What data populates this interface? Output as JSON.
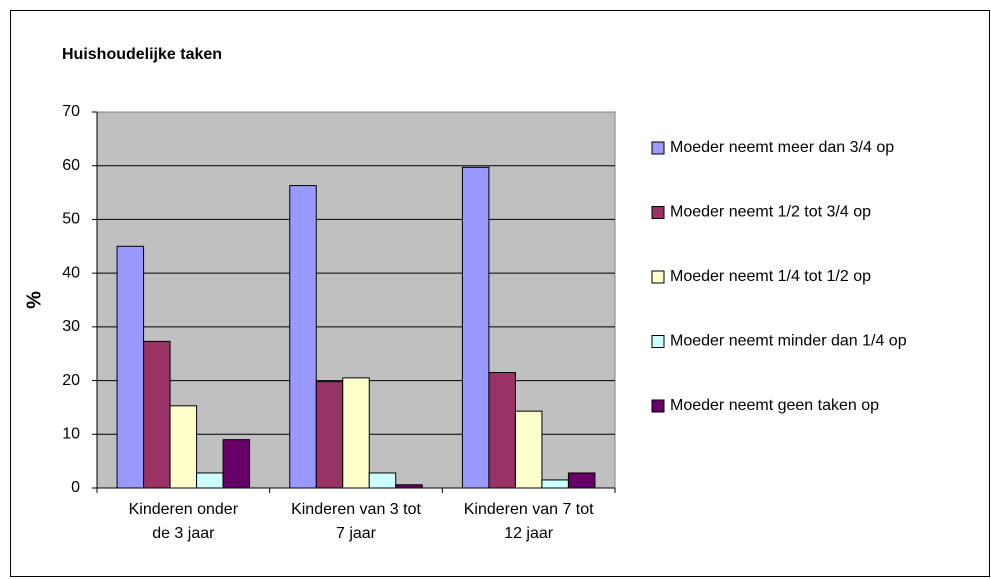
{
  "chart_data": {
    "type": "bar",
    "title": "Huishoudelijke taken",
    "y_label": "%",
    "categories": [
      "Kinderen onder de 3 jaar",
      "Kinderen van 3 tot 7 jaar",
      "Kinderen van 7 tot 12 jaar"
    ],
    "series": [
      {
        "name": "Moeder neemt meer dan 3/4 op",
        "color": "#9999ff",
        "values": [
          45,
          56.3,
          59.7
        ]
      },
      {
        "name": "Moeder neemt 1/2 tot 3/4 op",
        "color": "#993366",
        "values": [
          27.3,
          19.8,
          21.5
        ]
      },
      {
        "name": "Moeder neemt 1/4 tot 1/2 op",
        "color": "#ffffcc",
        "values": [
          15.3,
          20.5,
          14.3
        ]
      },
      {
        "name": "Moeder neemt minder dan 1/4 op",
        "color": "#ccffff",
        "values": [
          2.8,
          2.8,
          1.5
        ]
      },
      {
        "name": "Moeder neemt geen taken op",
        "color": "#660066",
        "values": [
          9,
          0.6,
          2.8
        ]
      }
    ],
    "ylim": [
      0,
      70
    ],
    "yticks": [
      0,
      10,
      20,
      30,
      40,
      50,
      60,
      70
    ],
    "grid": true,
    "legend": "right"
  }
}
